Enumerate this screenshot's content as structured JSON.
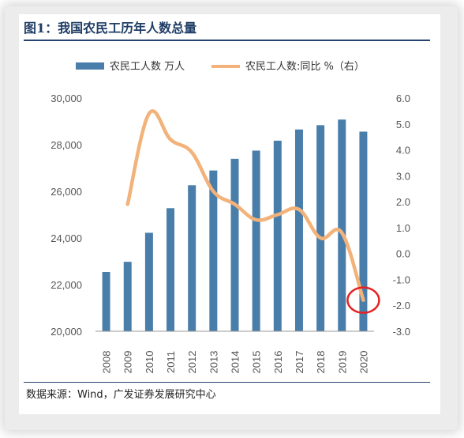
{
  "title": "图1：我国农民工历年人数总量",
  "source": "数据来源：Wind，广发证券发展研究中心",
  "colors": {
    "bar": "#4a7eaa",
    "line": "#f2b27a",
    "title": "#1f3d66",
    "highlight_circle": "#e52222"
  },
  "chart_data": {
    "type": "bar",
    "categories": [
      "2008",
      "2009",
      "2010",
      "2011",
      "2012",
      "2013",
      "2014",
      "2015",
      "2016",
      "2017",
      "2018",
      "2019",
      "2020"
    ],
    "series": [
      {
        "name": "农民工人数 万人",
        "type": "bar",
        "axis": "left",
        "values": [
          22542,
          22978,
          24223,
          25278,
          26261,
          26894,
          27395,
          27747,
          28171,
          28652,
          28836,
          29077,
          28560
        ]
      },
      {
        "name": "农民工人数:同比 %（右）",
        "type": "line",
        "axis": "right",
        "values": [
          null,
          1.9,
          5.4,
          4.4,
          3.9,
          2.4,
          1.9,
          1.3,
          1.5,
          1.7,
          0.6,
          0.8,
          -1.8
        ]
      }
    ],
    "y_left": {
      "lim": [
        20000,
        30000
      ],
      "ticks": [
        "20,000",
        "22,000",
        "24,000",
        "26,000",
        "28,000",
        "30,000"
      ]
    },
    "y_right": {
      "lim": [
        -3.0,
        6.0
      ],
      "ticks": [
        "-3.0",
        "-2.0",
        "-1.0",
        "0.0",
        "1.0",
        "2.0",
        "3.0",
        "4.0",
        "5.0",
        "6.0"
      ]
    },
    "grid": false,
    "legend": "top",
    "annotation": {
      "type": "circle",
      "category": "2020",
      "series": "line"
    }
  }
}
